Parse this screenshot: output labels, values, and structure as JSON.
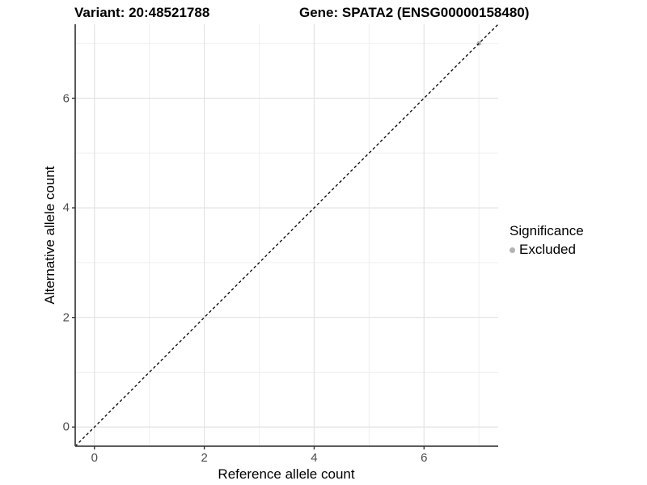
{
  "chart_data": {
    "type": "scatter",
    "title_variant": "Variant: 20:48521788",
    "title_gene": "Gene: SPATA2 (ENSG00000158480)",
    "xlabel": "Reference allele count",
    "ylabel": "Alternative allele count",
    "xlim": [
      -0.35,
      7.35
    ],
    "ylim": [
      -0.35,
      7.35
    ],
    "x_ticks": [
      0,
      2,
      4,
      6
    ],
    "y_ticks": [
      0,
      2,
      4,
      6
    ],
    "x_minor_ticks": [
      1,
      3,
      5,
      7
    ],
    "y_minor_ticks": [
      1,
      3,
      5,
      7
    ],
    "grid": true,
    "points": [
      {
        "x": 7,
        "y": 7,
        "significance": "Excluded"
      }
    ],
    "abline": {
      "slope": 1,
      "intercept": 0,
      "style": "dashed",
      "color": "#000000"
    },
    "legend": {
      "position": "right",
      "title": "Significance",
      "entries": [
        {
          "label": "Excluded",
          "color": "#b3b3b3"
        }
      ]
    },
    "style": {
      "point_color_excluded": "#b3b3b3",
      "grid_major_color": "#e3e3e3",
      "grid_minor_color": "#efefef",
      "axis_line_color": "#454545",
      "tick_mark_color": "#333333",
      "tick_label_color": "#4d4d4d",
      "background": "#ffffff"
    }
  }
}
